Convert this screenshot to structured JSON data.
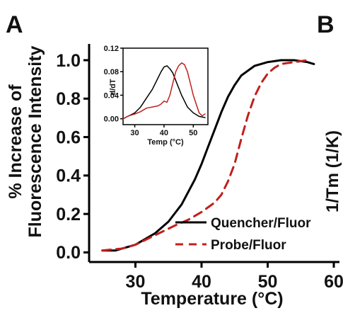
{
  "panel_labels": {
    "a": "A",
    "b": "B"
  },
  "right_panel": {
    "ylabel": "1/Tm (1/K)"
  },
  "colors": {
    "quencher": "#000000",
    "probe": "#c0201d",
    "axis": "#000000"
  },
  "chart_data": [
    {
      "type": "line",
      "title": "",
      "xlabel": "Temperature (°C)",
      "ylabel_line1": "% Increase of",
      "ylabel_line2": "Fluorescence Intensity",
      "xlim": [
        23,
        60
      ],
      "ylim": [
        -0.05,
        1.07
      ],
      "xticks": [
        "30",
        "40",
        "50",
        "60"
      ],
      "xtick_values": [
        30,
        40,
        50,
        60
      ],
      "yticks": [
        "0.0",
        "0.2",
        "0.4",
        "0.6",
        "0.8",
        "1.0"
      ],
      "ytick_values": [
        0.0,
        0.2,
        0.4,
        0.6,
        0.8,
        1.0
      ],
      "legend_position": "bottom-right",
      "series": [
        {
          "name": "Quencher/Fluor",
          "color": "#000000",
          "style": "solid",
          "x": [
            25,
            27,
            30,
            33,
            35,
            37,
            39,
            40,
            41,
            42,
            43,
            44,
            45,
            46,
            48,
            50,
            52,
            54,
            56,
            57
          ],
          "y": [
            0.01,
            0.01,
            0.04,
            0.1,
            0.16,
            0.25,
            0.38,
            0.46,
            0.55,
            0.64,
            0.73,
            0.81,
            0.87,
            0.92,
            0.97,
            0.99,
            1.0,
            1.0,
            0.99,
            0.98
          ]
        },
        {
          "name": "Probe/Fluor",
          "color": "#c0201d",
          "style": "dashed",
          "x": [
            25,
            28,
            30,
            33,
            36,
            38,
            40,
            42,
            43,
            44,
            45,
            46,
            47,
            48,
            49,
            50,
            51,
            52,
            54,
            56
          ],
          "y": [
            0.01,
            0.02,
            0.04,
            0.09,
            0.14,
            0.17,
            0.21,
            0.26,
            0.3,
            0.37,
            0.46,
            0.59,
            0.71,
            0.81,
            0.88,
            0.93,
            0.96,
            0.98,
            0.99,
            1.0
          ]
        }
      ]
    },
    {
      "type": "line",
      "title": "",
      "xlabel": "Temp (°C)",
      "ylabel": "d/dT",
      "xlim": [
        26,
        55
      ],
      "ylim": [
        -0.01,
        0.12
      ],
      "xticks": [
        "30",
        "40",
        "50"
      ],
      "xtick_values": [
        30,
        40,
        50
      ],
      "yticks": [
        "0.00",
        "0.04",
        "0.08",
        "0.12"
      ],
      "ytick_values": [
        0.0,
        0.04,
        0.08,
        0.12
      ],
      "series": [
        {
          "color": "#000000",
          "x": [
            26,
            28,
            30,
            32,
            34,
            36,
            38,
            39,
            40,
            41,
            42,
            43,
            44,
            46,
            48,
            50,
            52,
            54
          ],
          "y": [
            0.0,
            0.005,
            0.01,
            0.02,
            0.035,
            0.05,
            0.07,
            0.08,
            0.088,
            0.09,
            0.085,
            0.078,
            0.065,
            0.04,
            0.02,
            0.01,
            0.004,
            0.002
          ]
        },
        {
          "color": "#c0201d",
          "x": [
            26,
            28,
            30,
            32,
            34,
            36,
            38,
            39,
            40,
            41,
            42,
            43,
            44,
            45,
            46,
            47,
            48,
            49,
            50,
            51,
            52,
            53,
            54
          ],
          "y": [
            0.0,
            0.005,
            0.008,
            0.012,
            0.018,
            0.02,
            0.022,
            0.025,
            0.03,
            0.028,
            0.04,
            0.06,
            0.08,
            0.09,
            0.095,
            0.092,
            0.08,
            0.06,
            0.04,
            0.025,
            0.01,
            0.005,
            0.008
          ]
        }
      ]
    }
  ]
}
